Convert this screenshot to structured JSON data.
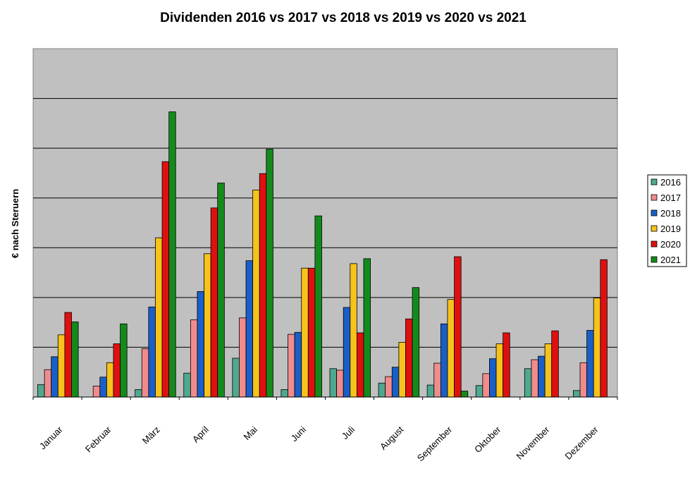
{
  "chart_data": {
    "type": "bar",
    "title": "Dividenden 2016 vs 2017 vs 2018 vs 2019 vs 2020 vs 2021",
    "xlabel": "",
    "ylabel": "€ nach Steruern",
    "ylim": [
      0,
      700
    ],
    "grid": true,
    "legend_position": "right",
    "categories": [
      "Januar",
      "Februar",
      "März",
      "April",
      "Mai",
      "Juni",
      "Juli",
      "August",
      "September",
      "Oktober",
      "November",
      "Dezember"
    ],
    "series": [
      {
        "name": "2016",
        "color": "#4fa890",
        "values": [
          25,
          0,
          15,
          48,
          78,
          15,
          57,
          28,
          24,
          23,
          57,
          13
        ]
      },
      {
        "name": "2017",
        "color": "#f08c8c",
        "values": [
          55,
          22,
          97,
          155,
          159,
          126,
          54,
          41,
          68,
          47,
          75,
          69
        ]
      },
      {
        "name": "2018",
        "color": "#1a5fc8",
        "values": [
          81,
          40,
          181,
          212,
          274,
          130,
          180,
          60,
          147,
          77,
          82,
          134
        ]
      },
      {
        "name": "2019",
        "color": "#f6c21c",
        "values": [
          125,
          69,
          320,
          288,
          416,
          259,
          268,
          110,
          196,
          107,
          107,
          199
        ]
      },
      {
        "name": "2020",
        "color": "#e01010",
        "values": [
          170,
          107,
          473,
          380,
          449,
          259,
          129,
          157,
          282,
          129,
          133,
          276
        ]
      },
      {
        "name": "2021",
        "color": "#148a1c",
        "values": [
          151,
          147,
          573,
          430,
          498,
          364,
          278,
          220,
          12,
          0,
          0,
          0
        ]
      }
    ]
  }
}
